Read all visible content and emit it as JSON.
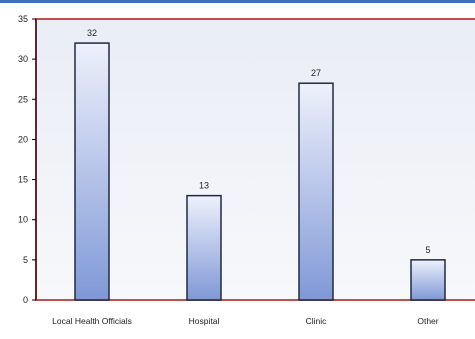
{
  "chart_data": {
    "type": "bar",
    "title": "",
    "xlabel": "",
    "ylabel": "",
    "categories": [
      "Local Health Officials",
      "Hospital",
      "Clinic",
      "Other"
    ],
    "values": [
      32,
      13,
      27,
      5
    ],
    "data_labels": [
      "32",
      "13",
      "27",
      "5"
    ],
    "ylim": [
      0,
      35
    ],
    "yticks": [
      0,
      5,
      10,
      15,
      20,
      25,
      30,
      35
    ],
    "ytick_labels": [
      "0",
      "5",
      "10",
      "15",
      "20",
      "25",
      "30",
      "35"
    ],
    "grid": false,
    "legend": "none",
    "colors": {
      "bar_top": "#eef1fb",
      "bar_bottom": "#7f98d6",
      "bar_stroke": "#1f2a44",
      "plot_border": "#c0504d",
      "plot_bg_top": "#e9edf5",
      "plot_bg_bottom": "#f7f8fb",
      "top_rule": "#3f6fb7",
      "axis": "#000000",
      "text": "#222222"
    }
  }
}
